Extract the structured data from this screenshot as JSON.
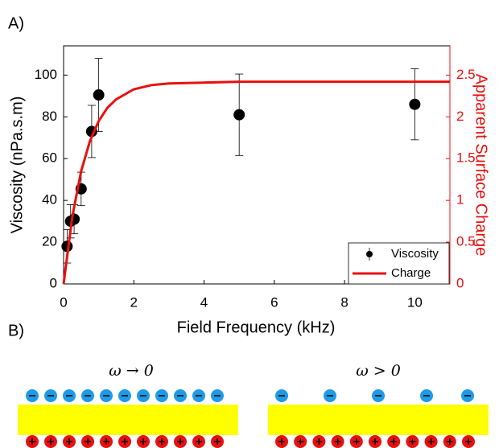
{
  "chart_data": {
    "type": "scatter-line",
    "panel_label": "A)",
    "xlabel": "Field Frequency (kHz)",
    "ylabel": "Viscosity (nPa.s.m)",
    "y2label": "Apparent Surface Charge",
    "xlim": [
      0,
      11
    ],
    "xticks": [
      0,
      2,
      4,
      6,
      8,
      10
    ],
    "ylim": [
      0,
      114
    ],
    "yticks": [
      0,
      20,
      40,
      60,
      80,
      100
    ],
    "y2lim": [
      0,
      2.85
    ],
    "y2ticks": [
      0,
      0.5,
      1,
      1.5,
      2,
      2.5
    ],
    "legend": "lower right",
    "series": [
      {
        "name": "Viscosity",
        "color": "#000000",
        "x": [
          0.1,
          0.2,
          0.3,
          0.5,
          0.8,
          1,
          5,
          10
        ],
        "values": [
          18,
          30,
          31,
          45.5,
          73,
          90.5,
          81,
          86
        ],
        "errors": [
          8,
          8,
          7,
          8,
          12.5,
          17.5,
          19.5,
          17
        ]
      },
      {
        "name": "Charge",
        "color": "#e81010",
        "axis": "y2",
        "x": [
          0,
          0.25,
          0.5,
          0.75,
          1,
          1.25,
          1.5,
          2,
          2.5,
          3,
          4,
          5,
          6,
          8,
          11
        ],
        "values": [
          0,
          0.81,
          1.35,
          1.71,
          1.95,
          2.11,
          2.21,
          2.33,
          2.38,
          2.4,
          2.41,
          2.42,
          2.42,
          2.42,
          2.42
        ]
      }
    ]
  },
  "diagram": {
    "panel_label": "B)",
    "left_label": "ω → 0",
    "right_label": "ω > 0"
  }
}
